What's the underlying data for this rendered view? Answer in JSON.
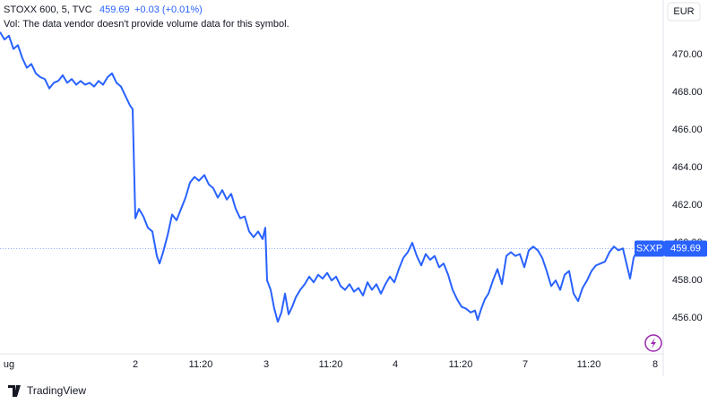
{
  "chart_data": {
    "type": "line",
    "symbol": "STOXX 600, 5, TVC",
    "change": "+0.03 (+0.01%)",
    "volume_note": "Vol: The data vendor doesn't provide volume data for this symbol.",
    "currency": "EUR",
    "brand": "TradingView",
    "x": [
      0,
      1,
      2,
      3,
      4,
      5,
      6,
      7,
      8,
      9,
      10,
      11,
      12,
      13,
      14,
      15,
      16,
      17,
      18,
      19,
      20,
      21,
      22,
      23,
      24,
      25,
      26,
      27,
      28,
      29,
      29.6,
      30.2,
      31,
      32,
      33,
      34,
      35,
      35.6,
      36.4,
      37.4,
      38.4,
      39.4,
      40.4,
      41.4,
      42.4,
      43.4,
      44.4,
      45.6,
      46.6,
      47.6,
      48.6,
      49.6,
      50.6,
      51.6,
      52.6,
      53.6,
      54.6,
      55.6,
      56.6,
      57.6,
      58.6,
      59.2,
      59.6,
      60.4,
      61.2,
      62,
      62.8,
      63.6,
      64.4,
      65.2,
      66,
      67,
      68,
      69,
      70,
      71,
      72,
      73,
      74,
      75,
      76,
      77,
      78,
      79,
      80,
      81,
      82,
      83,
      84,
      85,
      86,
      87,
      88,
      89,
      90,
      91,
      92,
      93,
      94,
      95,
      96,
      97,
      98,
      99,
      100,
      101,
      102,
      103,
      104,
      105,
      106,
      106.6,
      107.4,
      108.2,
      109,
      110,
      111,
      112,
      113,
      114,
      115,
      116,
      117,
      118,
      119,
      120,
      121,
      122,
      123,
      124,
      125,
      126,
      127,
      128,
      129,
      130,
      131,
      132,
      133,
      134,
      135,
      136,
      137,
      138,
      139,
      140,
      140.6,
      141.4,
      142.4,
      143
    ],
    "series": [
      {
        "name": "SXXP",
        "color": "#2962ff",
        "values": [
          471.2,
          470.8,
          471.0,
          470.3,
          470.5,
          469.8,
          469.3,
          469.5,
          469.0,
          468.8,
          468.7,
          468.2,
          468.5,
          468.6,
          468.9,
          468.5,
          468.7,
          468.4,
          468.6,
          468.4,
          468.5,
          468.3,
          468.6,
          468.4,
          468.8,
          469.0,
          468.5,
          468.3,
          467.8,
          467.3,
          467.1,
          461.3,
          461.8,
          461.4,
          460.8,
          460.6,
          459.3,
          458.9,
          459.5,
          460.4,
          461.5,
          461.2,
          461.8,
          462.4,
          463.2,
          463.5,
          463.3,
          463.6,
          463.1,
          462.9,
          462.4,
          462.8,
          462.3,
          462.6,
          461.8,
          461.3,
          461.4,
          460.6,
          460.3,
          460.6,
          460.2,
          460.8,
          458.0,
          457.5,
          456.5,
          455.8,
          456.3,
          457.3,
          456.2,
          456.6,
          457.1,
          457.5,
          457.8,
          458.2,
          457.9,
          458.3,
          458.1,
          458.4,
          458.0,
          458.2,
          457.7,
          457.5,
          457.8,
          457.4,
          457.6,
          457.2,
          457.9,
          457.5,
          457.8,
          457.3,
          457.8,
          458.2,
          457.9,
          458.6,
          459.2,
          459.5,
          460.0,
          459.3,
          458.8,
          459.4,
          459.1,
          459.3,
          458.7,
          458.9,
          458.3,
          457.5,
          457.0,
          456.6,
          456.5,
          456.3,
          456.4,
          455.9,
          456.5,
          457.0,
          457.3,
          458.0,
          458.6,
          457.8,
          459.3,
          459.5,
          459.3,
          459.4,
          458.7,
          459.6,
          459.8,
          459.6,
          459.2,
          458.5,
          457.7,
          458.0,
          457.5,
          458.3,
          458.5,
          457.3,
          456.9,
          457.6,
          458.0,
          458.5,
          458.8,
          458.9,
          459.0,
          459.5,
          459.8,
          459.6,
          459.7,
          458.7,
          458.1,
          459.2,
          459.7,
          459.69
        ]
      }
    ],
    "xlim": [
      0,
      148
    ],
    "ylim": [
      454.1,
      472.9
    ],
    "xticks": [
      {
        "value": 2,
        "label": "ug"
      },
      {
        "value": 30.2,
        "label": "2"
      },
      {
        "value": 44.8,
        "label": "11:20"
      },
      {
        "value": 59.4,
        "label": "3"
      },
      {
        "value": 73.8,
        "label": "11:20"
      },
      {
        "value": 88.2,
        "label": "4"
      },
      {
        "value": 102.8,
        "label": "11:20"
      },
      {
        "value": 117.2,
        "label": "7"
      },
      {
        "value": 131.4,
        "label": "11:20"
      },
      {
        "value": 146.2,
        "label": "8"
      }
    ],
    "yticks": [
      {
        "value": 456,
        "label": "456.00"
      },
      {
        "value": 458,
        "label": "458.00"
      },
      {
        "value": 460,
        "label": "460.00"
      },
      {
        "value": 462,
        "label": "462.00"
      },
      {
        "value": 464,
        "label": "464.00"
      },
      {
        "value": 466,
        "label": "466.00"
      },
      {
        "value": 468,
        "label": "468.00"
      },
      {
        "value": 470,
        "label": "470.00"
      }
    ],
    "grid": false
  }
}
